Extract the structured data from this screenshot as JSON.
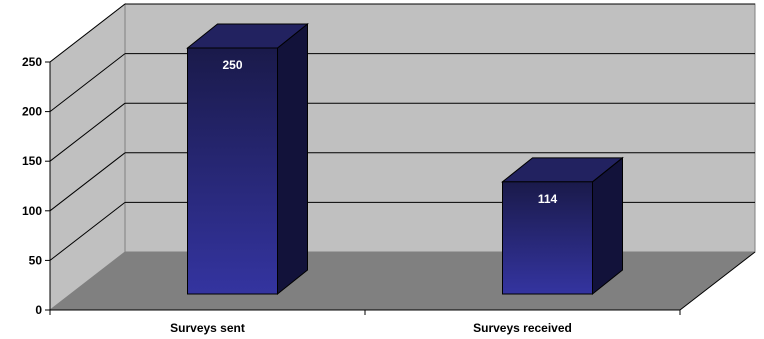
{
  "chart_data": {
    "type": "bar",
    "categories": [
      "Surveys sent",
      "Surveys received"
    ],
    "values": [
      250,
      114
    ],
    "ylim": [
      0,
      250
    ],
    "yticks": [
      0,
      50,
      100,
      150,
      200,
      250
    ],
    "data_labels": [
      "250",
      "114"
    ],
    "grid": true,
    "three_d": true,
    "colors": {
      "bar_top": "#1a1a4a",
      "bar_bottom": "#3434a0",
      "bar_side": "#12123a",
      "bar_cap": "#222260",
      "wall": "#c0c0c0",
      "floor": "#808080",
      "gridline": "#000000"
    }
  }
}
